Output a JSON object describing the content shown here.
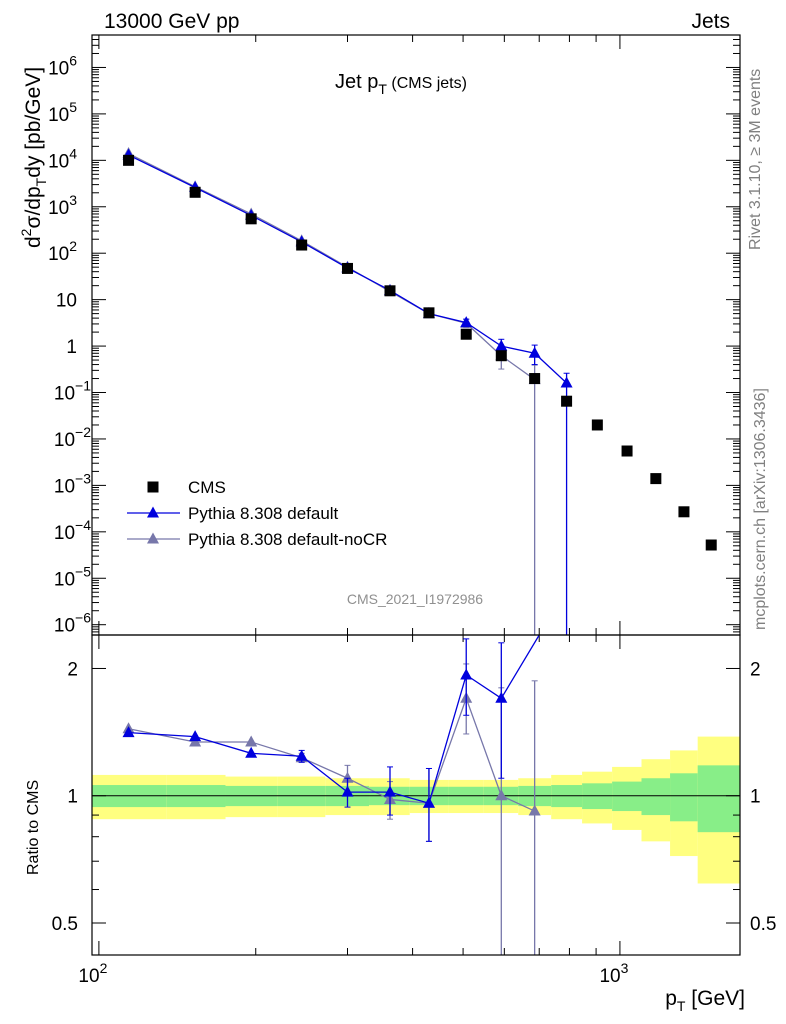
{
  "header": {
    "left": "13000 GeV pp",
    "right": "Jets"
  },
  "side_labels": {
    "rivet": "Rivet 3.1.10, ≥ 3M events",
    "mcplots": "mcplots.cern.ch [arXiv:1306.3436]"
  },
  "plot_title": {
    "main": "Jet p",
    "sub": "T",
    "suffix": " (CMS jets)"
  },
  "analysis_label": "CMS_2021_I1972986",
  "axis_labels": {
    "y_main_pre": "d",
    "y_main_sup": "2",
    "y_main_mid": "σ/dp",
    "y_main_sub": "T",
    "y_main_post": "dy [pb/GeV]",
    "y_ratio": "Ratio to CMS",
    "x_pre": "p",
    "x_sub": "T",
    "x_post": " [GeV]"
  },
  "legend": [
    {
      "name": "CMS",
      "marker": "square",
      "color": "#000000"
    },
    {
      "name": "Pythia 8.308 default",
      "marker": "triangle",
      "color": "#0000dd"
    },
    {
      "name": "Pythia 8.308 default-noCR",
      "marker": "triangle",
      "color": "#7777aa"
    }
  ],
  "chart_data": {
    "type": "scatter",
    "xscale": "log",
    "yscale_main": "log",
    "yscale_ratio": "log",
    "xlim": [
      97,
      1700
    ],
    "ylim_main": [
      6e-07,
      5000000.0
    ],
    "ylim_ratio": [
      0.42,
      2.4
    ],
    "x_ticks": [
      {
        "value": 100,
        "base": "10",
        "exp": "2"
      },
      {
        "value": 1000,
        "base": "10",
        "exp": "3"
      }
    ],
    "y_main_ticks": [
      {
        "value": 1000000.0,
        "base": "10",
        "exp": "6"
      },
      {
        "value": 100000.0,
        "base": "10",
        "exp": "5"
      },
      {
        "value": 10000.0,
        "base": "10",
        "exp": "4"
      },
      {
        "value": 1000.0,
        "base": "10",
        "exp": "3"
      },
      {
        "value": 100.0,
        "base": "10",
        "exp": "2"
      },
      {
        "value": 10,
        "base": "10",
        "exp": ""
      },
      {
        "value": 1,
        "base": "1",
        "exp": ""
      },
      {
        "value": 0.1,
        "base": "10",
        "exp": "−1"
      },
      {
        "value": 0.01,
        "base": "10",
        "exp": "−2"
      },
      {
        "value": 0.001,
        "base": "10",
        "exp": "−3"
      },
      {
        "value": 0.0001,
        "base": "10",
        "exp": "−4"
      },
      {
        "value": 1e-05,
        "base": "10",
        "exp": "−5"
      },
      {
        "value": 1e-06,
        "base": "10",
        "exp": "−6"
      }
    ],
    "y_ratio_ticks": [
      {
        "value": 2,
        "label": "2"
      },
      {
        "value": 1,
        "label": "1"
      },
      {
        "value": 0.5,
        "label": "0.5"
      }
    ],
    "series": [
      {
        "name": "CMS",
        "x": [
          114,
          153,
          196,
          245,
          300,
          362,
          430,
          507,
          592,
          686,
          790,
          905,
          1032,
          1172,
          1327,
          1497
        ],
        "y": [
          10000,
          2050,
          550,
          150,
          47,
          15.5,
          5.2,
          1.8,
          0.62,
          0.2,
          0.065,
          0.02,
          0.0055,
          0.0014,
          0.00027,
          5.2e-05
        ]
      },
      {
        "name": "Pythia 8.308 default",
        "x": [
          114,
          153,
          196,
          245,
          300,
          362,
          430,
          507,
          592,
          686,
          790
        ],
        "y": [
          13000,
          2600,
          650,
          175,
          48,
          15.8,
          5.0,
          3.2,
          1.0,
          0.7,
          0.16
        ],
        "yerr_low": [
          0,
          0,
          0,
          0,
          0,
          0,
          0,
          0.5,
          0.3,
          0.3,
          0.16
        ],
        "yerr_high": [
          0,
          0,
          0,
          0,
          0,
          0,
          0,
          0.6,
          0.4,
          0.35,
          0.1
        ]
      },
      {
        "name": "Pythia 8.308 default-noCR",
        "x": [
          114,
          153,
          196,
          245,
          300,
          362,
          430,
          507,
          592,
          686
        ],
        "y": [
          14000,
          2700,
          700,
          185,
          50,
          15,
          5.0,
          3.1,
          0.62,
          0.19
        ],
        "yerr_low": [
          0,
          0,
          0,
          0,
          0,
          0,
          0,
          0.6,
          0.3,
          0.19
        ],
        "yerr_high": [
          0,
          0,
          0,
          0,
          0,
          0,
          0,
          0.7,
          0.3,
          0.2
        ]
      }
    ],
    "ratio_series": [
      {
        "name": "Pythia 8.308 default",
        "x": [
          114,
          153,
          196,
          245,
          300,
          362,
          430,
          507,
          592
        ],
        "y": [
          1.41,
          1.38,
          1.26,
          1.24,
          1.02,
          1.02,
          0.96,
          1.93,
          1.7
        ],
        "yerr_low": [
          0,
          0,
          0,
          0.04,
          0.08,
          0.12,
          0.18,
          0.38,
          0.6
        ],
        "yerr_high": [
          0,
          0,
          0,
          0.04,
          0.08,
          0.15,
          0.2,
          0.42,
          0.6
        ],
        "overflow_to": 700
      },
      {
        "name": "Pythia 8.308 default-noCR",
        "x": [
          114,
          153,
          196,
          245,
          300,
          362,
          430,
          507,
          592,
          686
        ],
        "y": [
          1.44,
          1.34,
          1.34,
          1.23,
          1.1,
          0.98,
          0.96,
          1.7,
          1.0,
          0.92
        ],
        "yerr_low": [
          0,
          0,
          0,
          0.03,
          0.08,
          0.1,
          0.18,
          0.3,
          0.62,
          0.6
        ],
        "yerr_high": [
          0,
          0,
          0,
          0.03,
          0.08,
          0.1,
          0.2,
          0.35,
          0.8,
          0.95
        ]
      }
    ],
    "uncertainty_bands": {
      "edges": [
        97,
        135,
        175,
        220,
        272,
        330,
        395,
        468,
        548,
        638,
        738,
        846,
        966,
        1100,
        1248,
        1410,
        1700
      ],
      "green": [
        0.06,
        0.06,
        0.055,
        0.055,
        0.055,
        0.05,
        0.05,
        0.05,
        0.05,
        0.055,
        0.06,
        0.07,
        0.08,
        0.1,
        0.13,
        0.18
      ],
      "yellow": [
        0.12,
        0.12,
        0.11,
        0.11,
        0.1,
        0.1,
        0.09,
        0.09,
        0.09,
        0.1,
        0.12,
        0.14,
        0.17,
        0.22,
        0.28,
        0.38
      ]
    }
  }
}
